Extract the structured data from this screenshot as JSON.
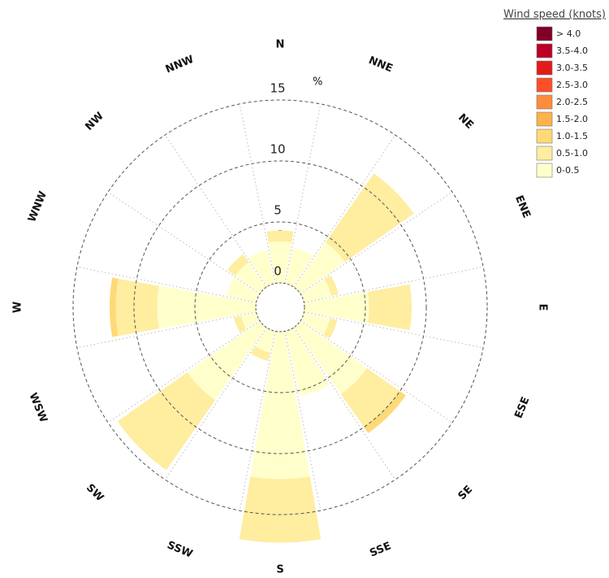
{
  "chart_data": {
    "type": "windrose",
    "categories": [
      "N",
      "NNE",
      "NE",
      "ENE",
      "E",
      "ESE",
      "SE",
      "SSE",
      "S",
      "SSW",
      "SW",
      "WSW",
      "W",
      "WNW",
      "NW",
      "NNW"
    ],
    "radial_label": "%",
    "rlim": [
      0,
      15
    ],
    "rticks": [
      0,
      5,
      10,
      15
    ],
    "legend_title": "Wind speed (knots)",
    "series": [
      {
        "name": "0-0.5",
        "color": "#ffffcc",
        "values": [
          3.4,
          3.0,
          4.5,
          2.3,
          5.3,
          2.2,
          6.7,
          5.5,
          12.1,
          1.8,
          7.3,
          1.3,
          8.1,
          2.5,
          2.5,
          2.8
        ]
      },
      {
        "name": "0.5-1.0",
        "color": "#ffeda0",
        "values": [
          0.9,
          0,
          6.9,
          0.6,
          3.5,
          0.6,
          3.3,
          0,
          5.2,
          0.7,
          7.0,
          0.6,
          3.4,
          0,
          0.8,
          0
        ]
      },
      {
        "name": "1.0-1.5",
        "color": "#fed976",
        "values": [
          0,
          0,
          0,
          0,
          0,
          0,
          0.6,
          0,
          0,
          0,
          0,
          0,
          0.5,
          0,
          0,
          0
        ]
      },
      {
        "name": "1.5-2.0",
        "color": "#feb24c",
        "values": [
          0,
          0,
          0,
          0,
          0,
          0,
          0,
          0,
          0,
          0,
          0,
          0,
          0,
          0,
          0,
          0
        ]
      },
      {
        "name": "2.0-2.5",
        "color": "#fd8d3c",
        "values": [
          0,
          0,
          0,
          0,
          0,
          0,
          0,
          0,
          0,
          0,
          0,
          0,
          0,
          0,
          0,
          0
        ]
      },
      {
        "name": "2.5-3.0",
        "color": "#fc4e2a",
        "values": [
          0,
          0,
          0,
          0,
          0,
          0,
          0,
          0,
          0,
          0,
          0,
          0,
          0,
          0,
          0,
          0
        ]
      },
      {
        "name": "3.0-3.5",
        "color": "#e31a1c",
        "values": [
          0,
          0,
          0,
          0,
          0,
          0,
          0,
          0,
          0,
          0,
          0,
          0,
          0,
          0,
          0,
          0
        ]
      },
      {
        "name": "3.5-4.0",
        "color": "#bd0026",
        "values": [
          0,
          0,
          0,
          0,
          0,
          0,
          0,
          0,
          0,
          0,
          0,
          0,
          0,
          0,
          0,
          0
        ]
      },
      {
        "name": "> 4.0",
        "color": "#800026",
        "values": [
          0,
          0,
          0,
          0,
          0,
          0,
          0,
          0,
          0,
          0,
          0,
          0,
          0,
          0,
          0,
          0
        ]
      }
    ]
  }
}
